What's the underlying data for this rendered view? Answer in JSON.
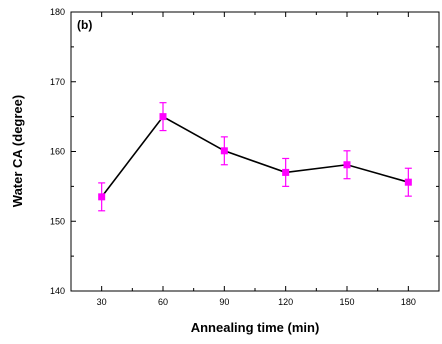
{
  "chart_data": {
    "type": "line",
    "panel_label": "(b)",
    "xlabel": "Annealing time (min)",
    "ylabel": "Water CA (degree)",
    "x": [
      30,
      60,
      90,
      120,
      150,
      180
    ],
    "xticks": [
      30,
      60,
      90,
      120,
      150,
      180
    ],
    "xticks_text": [
      "30",
      "60",
      "90",
      "120",
      "150",
      "180"
    ],
    "xlim": [
      15,
      195
    ],
    "ylim": [
      140,
      180
    ],
    "yticks": [
      140,
      150,
      160,
      170,
      180
    ],
    "yticks_text": [
      "140",
      "150",
      "160",
      "170",
      "180"
    ],
    "grid": false,
    "series": [
      {
        "values": [
          153.5,
          165.0,
          160.1,
          157.0,
          158.1,
          155.6
        ],
        "errors": [
          2.0,
          2.0,
          2.0,
          2.0,
          2.0,
          2.0
        ],
        "line_color": "#000000",
        "marker_color": "#ff00ff",
        "marker": "square"
      }
    ]
  }
}
